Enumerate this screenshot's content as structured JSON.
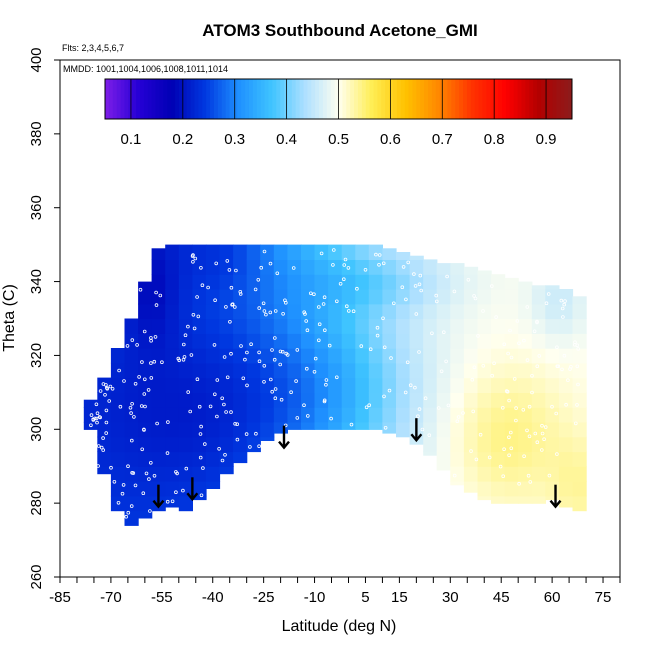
{
  "chart_data": {
    "type": "heatmap",
    "title": "ATOM3 Southbound Acetone_GMI",
    "flights_note": "Flts: 2,3,4,5,6,7",
    "dates_note": "MMDD: 1001,1004,1006,1008,1011,1014",
    "xlabel": "Latitude (deg N)",
    "ylabel": "Theta (C)",
    "xlim": [
      -85,
      80
    ],
    "ylim": [
      260,
      400
    ],
    "x_tick_labels": [
      "-85",
      "-70",
      "-55",
      "-40",
      "-25",
      "-10",
      "5",
      "15",
      "30",
      "45",
      "60",
      "75"
    ],
    "y_tick_labels": [
      "260",
      "280",
      "300",
      "320",
      "340",
      "360",
      "380",
      "400"
    ],
    "colorbar": {
      "min": 0.05,
      "max": 0.95,
      "tick_labels": [
        "0.1",
        "0.2",
        "0.3",
        "0.4",
        "0.5",
        "0.6",
        "0.7",
        "0.8",
        "0.9"
      ],
      "colors": [
        "#7f1ee8",
        "#2600d6",
        "#0000b4",
        "#0038e0",
        "#1e90ff",
        "#3fc4ff",
        "#aee0ff",
        "#fffff0",
        "#ffee55",
        "#ffc200",
        "#ff8800",
        "#ff3300",
        "#ff0000",
        "#b30000",
        "#8c1c1c"
      ]
    },
    "field": {
      "lat_bins": [
        -76,
        -72,
        -68,
        -64,
        -60,
        -56,
        -52,
        -48,
        -44,
        -40,
        -36,
        -32,
        -28,
        -24,
        -20,
        -16,
        -12,
        -8,
        -4,
        0,
        4,
        8,
        12,
        16,
        20,
        24,
        28,
        32,
        36,
        40,
        44,
        48,
        52,
        56,
        60,
        64,
        68
      ],
      "theta_bins": [
        264,
        268,
        272,
        276,
        280,
        284,
        288,
        292,
        296,
        300,
        304,
        308,
        312,
        316,
        320,
        324,
        328,
        332,
        336,
        340,
        344,
        348
      ],
      "lower_boundary_theta": [
        300,
        288,
        278,
        274,
        276,
        278,
        279,
        278,
        281,
        284,
        288,
        291,
        294,
        297,
        299,
        300,
        300,
        300,
        300,
        300,
        300,
        300,
        299,
        298,
        296,
        293,
        289,
        285,
        283,
        281,
        280,
        280,
        280,
        280,
        281,
        279,
        278
      ],
      "upper_boundary_theta": [
        308,
        314,
        322,
        330,
        340,
        349,
        350,
        350,
        350,
        350,
        350,
        350,
        350,
        350,
        350,
        350,
        350,
        350,
        350,
        350,
        350,
        350,
        349,
        348,
        347,
        346,
        345,
        345,
        344,
        343,
        342,
        341,
        340,
        339,
        339,
        338,
        336
      ]
    },
    "arrows": [
      {
        "lat": -56,
        "theta": 285
      },
      {
        "lat": -46,
        "theta": 287
      },
      {
        "lat": -19,
        "theta": 301
      },
      {
        "lat": 20,
        "theta": 303
      },
      {
        "lat": 61,
        "theta": 285
      }
    ]
  }
}
